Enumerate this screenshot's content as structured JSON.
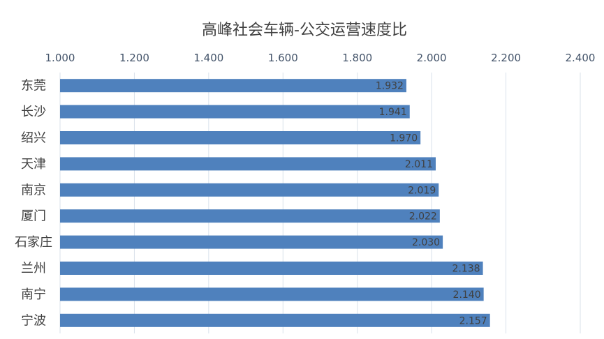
{
  "chart_data": {
    "type": "bar",
    "orientation": "horizontal",
    "title": "高峰社会车辆-公交运营速度比",
    "categories": [
      "东莞",
      "长沙",
      "绍兴",
      "天津",
      "南京",
      "厦门",
      "石家庄",
      "兰州",
      "南宁",
      "宁波"
    ],
    "values": [
      1.932,
      1.941,
      1.97,
      2.011,
      2.019,
      2.022,
      2.03,
      2.138,
      2.14,
      2.157
    ],
    "value_labels": [
      "1.932",
      "1.941",
      "1.970",
      "2.011",
      "2.019",
      "2.022",
      "2.030",
      "2.138",
      "2.140",
      "2.157"
    ],
    "xlim": [
      1.0,
      2.4
    ],
    "x_ticks": [
      "1.000",
      "1.200",
      "1.400",
      "1.600",
      "1.800",
      "2.000",
      "2.200",
      "2.400"
    ],
    "x_axis_position": "top",
    "grid": true,
    "legend": "none",
    "bar_color": "#4F81BD",
    "gridline_color": "#D9E1EA"
  }
}
